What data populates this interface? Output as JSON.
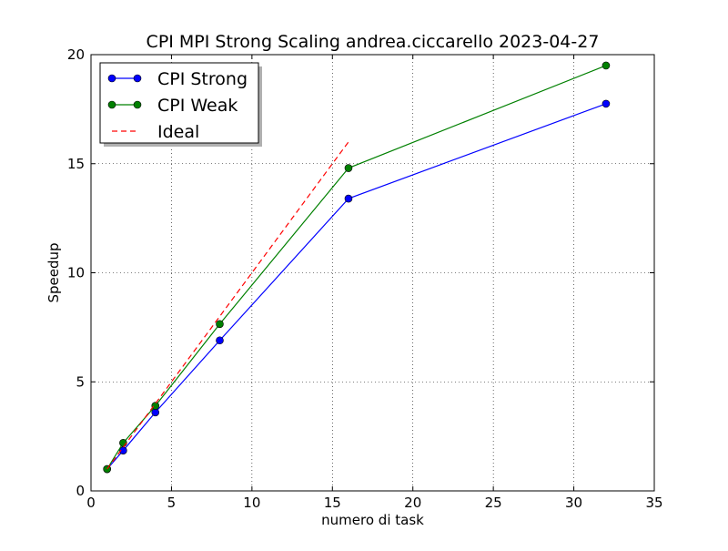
{
  "chart_data": {
    "type": "line",
    "title": "CPI MPI Strong Scaling andrea.ciccarello 2023-04-27",
    "xlabel": "numero di task",
    "ylabel": "Speedup",
    "xlim": [
      0,
      35
    ],
    "ylim": [
      0,
      20
    ],
    "xticks": [
      0,
      5,
      10,
      15,
      20,
      25,
      30,
      35
    ],
    "yticks": [
      0,
      5,
      10,
      15,
      20
    ],
    "x_tick_labels": [
      "0",
      "5",
      "10",
      "15",
      "20",
      "25",
      "30",
      "35"
    ],
    "y_tick_labels": [
      "0",
      "5",
      "10",
      "15",
      "20"
    ],
    "grid": true,
    "legend_position": "top-left",
    "series": [
      {
        "name": "CPI Strong",
        "color": "#0000ff",
        "style": "solid",
        "marker": "circle",
        "x": [
          1,
          2,
          4,
          8,
          16,
          32
        ],
        "y": [
          1.0,
          1.85,
          3.6,
          6.9,
          13.4,
          17.75
        ]
      },
      {
        "name": "CPI Weak",
        "color": "#008000",
        "style": "solid",
        "marker": "circle",
        "x": [
          1,
          2,
          4,
          8,
          16,
          32
        ],
        "y": [
          1.0,
          2.2,
          3.9,
          7.65,
          14.8,
          19.5
        ]
      },
      {
        "name": "Ideal",
        "color": "#ff0000",
        "style": "dashed",
        "marker": "none",
        "x": [
          1,
          16
        ],
        "y": [
          1,
          16
        ]
      }
    ]
  }
}
